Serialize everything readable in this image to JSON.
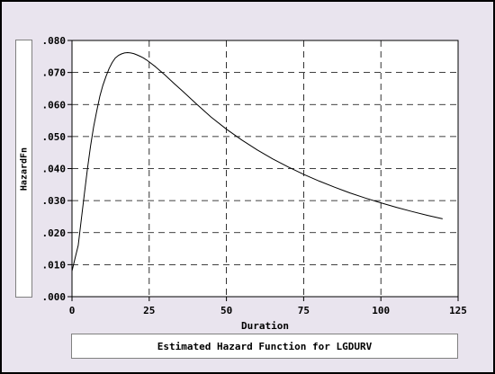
{
  "chart_data": {
    "type": "line",
    "title": "Estimated Hazard Function for LGDURV",
    "xlabel": "Duration",
    "ylabel": "HazardFn",
    "xlim": [
      0,
      125
    ],
    "ylim": [
      0,
      0.08
    ],
    "x_ticks": [
      0,
      25,
      50,
      75,
      100,
      125
    ],
    "x_tick_labels": [
      "0",
      "25",
      "50",
      "75",
      "100",
      "125"
    ],
    "y_ticks": [
      0,
      0.01,
      0.02,
      0.03,
      0.04,
      0.05,
      0.06,
      0.07,
      0.08
    ],
    "y_tick_labels": [
      ".000",
      ".010",
      ".020",
      ".030",
      ".040",
      ".050",
      ".060",
      ".070",
      ".080"
    ],
    "grid": true,
    "series": [
      {
        "x": [
          0,
          1,
          2,
          3,
          4,
          5,
          6,
          7,
          8,
          9,
          10,
          11,
          12,
          13,
          14,
          15,
          16,
          17,
          18,
          19,
          20,
          21,
          22,
          23,
          24,
          25,
          27,
          30,
          33,
          36,
          40,
          45,
          50,
          55,
          60,
          65,
          70,
          75,
          80,
          85,
          90,
          95,
          100,
          105,
          110,
          115,
          120
        ],
        "y": [
          0.008,
          0.012,
          0.016,
          0.024,
          0.032,
          0.04,
          0.047,
          0.053,
          0.058,
          0.0625,
          0.066,
          0.0688,
          0.0712,
          0.0731,
          0.0745,
          0.0753,
          0.0758,
          0.0761,
          0.0762,
          0.0761,
          0.0759,
          0.0755,
          0.0751,
          0.0746,
          0.074,
          0.0733,
          0.0718,
          0.0693,
          0.0666,
          0.064,
          0.0604,
          0.0561,
          0.0523,
          0.0489,
          0.0458,
          0.043,
          0.0405,
          0.0382,
          0.0361,
          0.0342,
          0.0324,
          0.0308,
          0.0293,
          0.0279,
          0.0266,
          0.0254,
          0.0243
        ],
        "color": "#000000"
      }
    ]
  }
}
